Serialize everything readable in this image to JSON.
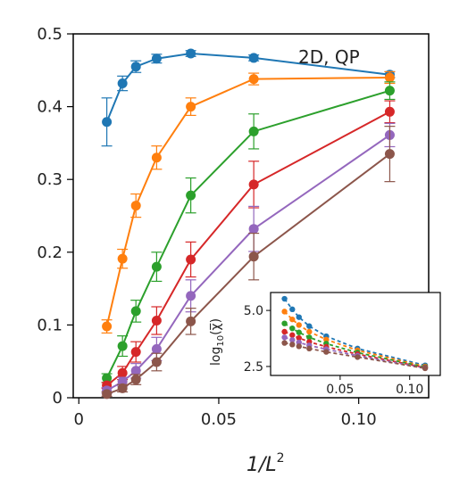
{
  "chart_data": [
    {
      "type": "line",
      "annotation": "2D, QP",
      "xlabel_main": "1/L",
      "xlabel_sup": "2",
      "ylabel": "",
      "xlim": [
        -0.002,
        0.125
      ],
      "ylim": [
        0,
        0.5
      ],
      "x_ticks": [
        0,
        0.05,
        0.1
      ],
      "x_tick_labels": [
        "0",
        "0.05",
        "0.10"
      ],
      "y_ticks": [
        0,
        0.1,
        0.2,
        0.3,
        0.4,
        0.5
      ],
      "y_tick_labels": [
        "0",
        "0.1",
        "0.2",
        "0.3",
        "0.4",
        "0.5"
      ],
      "x": [
        0.01,
        0.0156,
        0.0204,
        0.0278,
        0.04,
        0.0625,
        0.1111
      ],
      "series": [
        {
          "color": "#1f77b4",
          "values": [
            0.379,
            0.432,
            0.455,
            0.466,
            0.473,
            0.467,
            0.444
          ],
          "errors": [
            0.033,
            0.01,
            0.008,
            0.006,
            0.004,
            0.004,
            0.004
          ]
        },
        {
          "color": "#ff7f0e",
          "values": [
            0.098,
            0.191,
            0.264,
            0.33,
            0.4,
            0.438,
            0.44
          ],
          "errors": [
            0.009,
            0.013,
            0.016,
            0.016,
            0.012,
            0.008,
            0.008
          ]
        },
        {
          "color": "#2ca02c",
          "values": [
            0.027,
            0.071,
            0.119,
            0.18,
            0.278,
            0.366,
            0.422
          ],
          "errors": [
            0.006,
            0.014,
            0.015,
            0.02,
            0.024,
            0.024,
            0.012
          ]
        },
        {
          "color": "#d62728",
          "values": [
            0.017,
            0.034,
            0.063,
            0.106,
            0.19,
            0.293,
            0.393
          ],
          "errors": [
            0.004,
            0.009,
            0.014,
            0.019,
            0.024,
            0.032,
            0.015
          ]
        },
        {
          "color": "#9467bd",
          "values": [
            0.01,
            0.022,
            0.037,
            0.067,
            0.14,
            0.232,
            0.361
          ],
          "errors": [
            0.004,
            0.006,
            0.01,
            0.016,
            0.022,
            0.031,
            0.016
          ]
        },
        {
          "color": "#8c564b",
          "values": [
            0.005,
            0.013,
            0.025,
            0.049,
            0.105,
            0.194,
            0.335
          ],
          "errors": [
            0.003,
            0.005,
            0.007,
            0.012,
            0.018,
            0.032,
            0.038
          ]
        }
      ]
    },
    {
      "type": "line",
      "ylabel": "log10(χ̅)",
      "ylabel_main": "log",
      "ylabel_sub": "10",
      "ylabel_arg": "(χ̅)",
      "xlim": [
        0.0,
        0.122
      ],
      "ylim": [
        2.1,
        5.8
      ],
      "x_ticks": [
        0.05,
        0.1
      ],
      "x_tick_labels": [
        "0.05",
        "0.10"
      ],
      "y_ticks": [
        2.5,
        5.0
      ],
      "y_tick_labels": [
        "2.5",
        "5.0"
      ],
      "x": [
        0.01,
        0.0156,
        0.0204,
        0.0278,
        0.04,
        0.0625,
        0.1111
      ],
      "series": [
        {
          "color": "#1f77b4",
          "values": [
            5.52,
            5.05,
            4.7,
            4.3,
            3.85,
            3.3,
            2.55
          ]
        },
        {
          "color": "#ff7f0e",
          "values": [
            4.95,
            4.6,
            4.35,
            4.05,
            3.7,
            3.22,
            2.5
          ]
        },
        {
          "color": "#2ca02c",
          "values": [
            4.42,
            4.2,
            4.02,
            3.8,
            3.52,
            3.12,
            2.47
          ]
        },
        {
          "color": "#d62728",
          "values": [
            4.05,
            3.9,
            3.77,
            3.6,
            3.38,
            3.05,
            2.45
          ]
        },
        {
          "color": "#9467bd",
          "values": [
            3.8,
            3.68,
            3.57,
            3.44,
            3.27,
            2.98,
            2.43
          ]
        },
        {
          "color": "#8c564b",
          "values": [
            3.55,
            3.48,
            3.4,
            3.3,
            3.15,
            2.92,
            2.42
          ]
        }
      ]
    }
  ]
}
